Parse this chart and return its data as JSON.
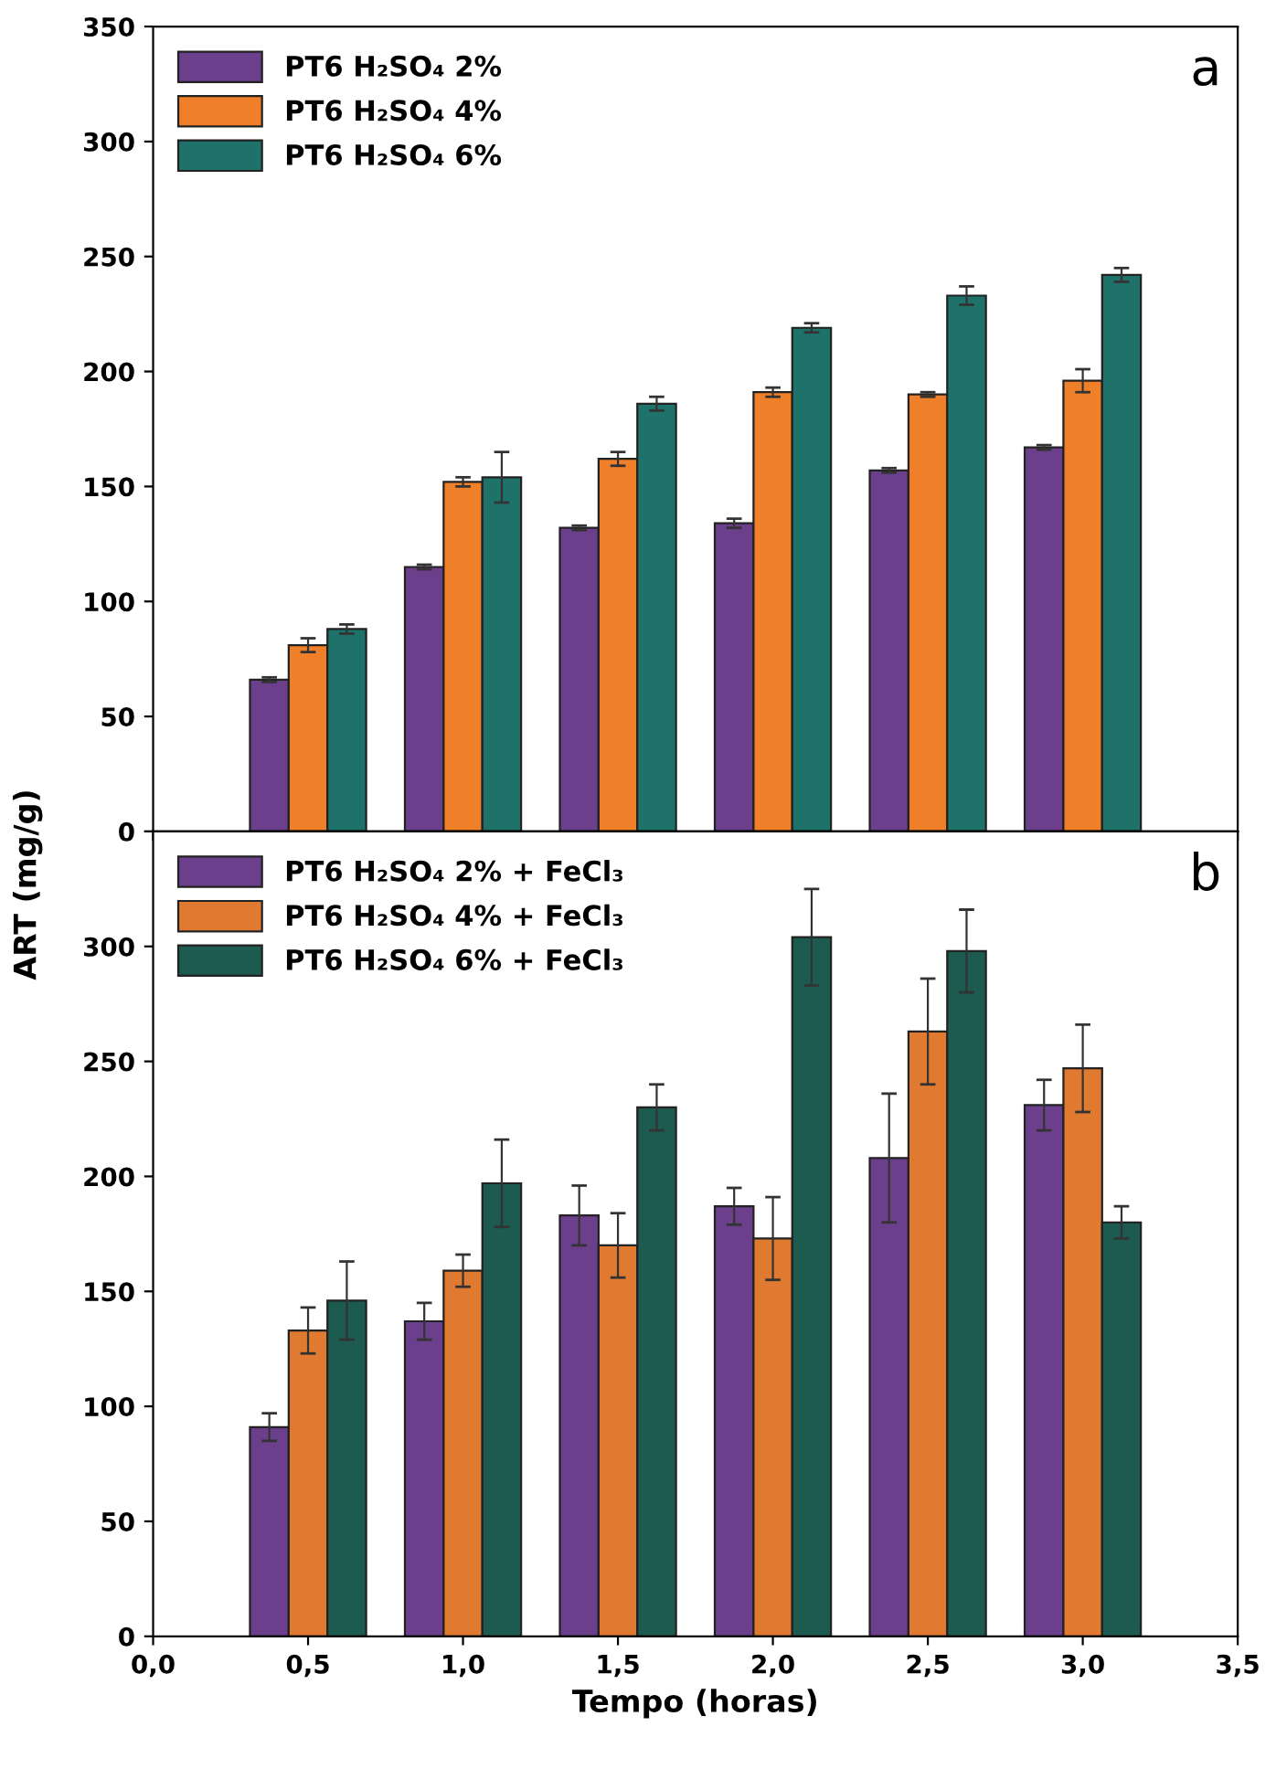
{
  "chart_data": [
    {
      "type": "bar",
      "annotations": [
        "a"
      ],
      "ylabel": "ART (mg/g)",
      "xlim": [
        0,
        3.5
      ],
      "xticks": [
        {
          "value": 0,
          "label": null
        },
        {
          "value": 0.5,
          "label": null
        },
        {
          "value": 1,
          "label": null
        },
        {
          "value": 1.5,
          "label": null
        },
        {
          "value": 2,
          "label": null
        },
        {
          "value": 2.5,
          "label": null
        },
        {
          "value": 3,
          "label": null
        },
        {
          "value": 3.5,
          "label": null
        }
      ],
      "ylim": [
        0,
        350
      ],
      "yticks": [
        0,
        50,
        100,
        150,
        200,
        250,
        300,
        350
      ],
      "tick_labels": "y",
      "legend": "top left",
      "grid": false,
      "series": [
        {
          "name": "PT6 H₂SO₄ 2%",
          "color": "#6b3f8c",
          "x": [
            0.375,
            0.875,
            1.375,
            1.875,
            2.375,
            2.875
          ],
          "values": [
            66,
            115,
            132,
            134,
            157,
            167
          ],
          "errors": [
            1,
            1,
            1,
            2,
            1,
            1
          ]
        },
        {
          "name": "PT6 H₂SO₄ 4%",
          "color": "#f07f2a",
          "x": [
            0.5,
            1.0,
            1.5,
            2.0,
            2.5,
            3.0
          ],
          "values": [
            81,
            152,
            162,
            191,
            190,
            196
          ],
          "errors": [
            3,
            2,
            3,
            2,
            1,
            5
          ]
        },
        {
          "name": "PT6 H₂SO₄ 6%",
          "color": "#1f726a",
          "x": [
            0.625,
            1.125,
            1.625,
            2.125,
            2.625,
            3.125
          ],
          "values": [
            88,
            154,
            186,
            219,
            233,
            242
          ],
          "errors": [
            2,
            11,
            3,
            2,
            4,
            3
          ]
        }
      ]
    },
    {
      "type": "bar",
      "annotations": [
        "b"
      ],
      "xlabel": "Tempo (horas)",
      "xlim": [
        0,
        3.5
      ],
      "xticks": [
        {
          "value": 0,
          "label": "0,0"
        },
        {
          "value": 0.5,
          "label": "0,5"
        },
        {
          "value": 1,
          "label": "1,0"
        },
        {
          "value": 1.5,
          "label": "1,5"
        },
        {
          "value": 2,
          "label": "2,0"
        },
        {
          "value": 2.5,
          "label": "2,5"
        },
        {
          "value": 3,
          "label": "3,0"
        },
        {
          "value": 3.5,
          "label": "3,5"
        }
      ],
      "ylim": [
        0,
        350
      ],
      "yticks": [
        0,
        50,
        100,
        150,
        200,
        250,
        300,
        {
          "value": 350,
          "label": null
        }
      ],
      "legend": "top left",
      "grid": false,
      "series": [
        {
          "name": "PT6 H₂SO₄ 2% + FeCl₃",
          "color": "#6b3f8c",
          "x": [
            0.375,
            0.875,
            1.375,
            1.875,
            2.375,
            2.875
          ],
          "values": [
            91,
            137,
            183,
            187,
            208,
            231
          ],
          "errors": [
            6,
            8,
            13,
            8,
            28,
            11
          ]
        },
        {
          "name": "PT6 H₂SO₄ 4% + FeCl₃",
          "color": "#e07a30",
          "x": [
            0.5,
            1.0,
            1.5,
            2.0,
            2.5,
            3.0
          ],
          "values": [
            133,
            159,
            170,
            173,
            263,
            247
          ],
          "errors": [
            10,
            7,
            14,
            18,
            23,
            19
          ]
        },
        {
          "name": "PT6 H₂SO₄ 6% + FeCl₃",
          "color": "#1d5a50",
          "x": [
            0.625,
            1.125,
            1.625,
            2.125,
            2.625,
            3.125
          ],
          "values": [
            146,
            197,
            230,
            304,
            298,
            180
          ],
          "errors": [
            17,
            19,
            10,
            21,
            18,
            7
          ]
        }
      ]
    }
  ]
}
